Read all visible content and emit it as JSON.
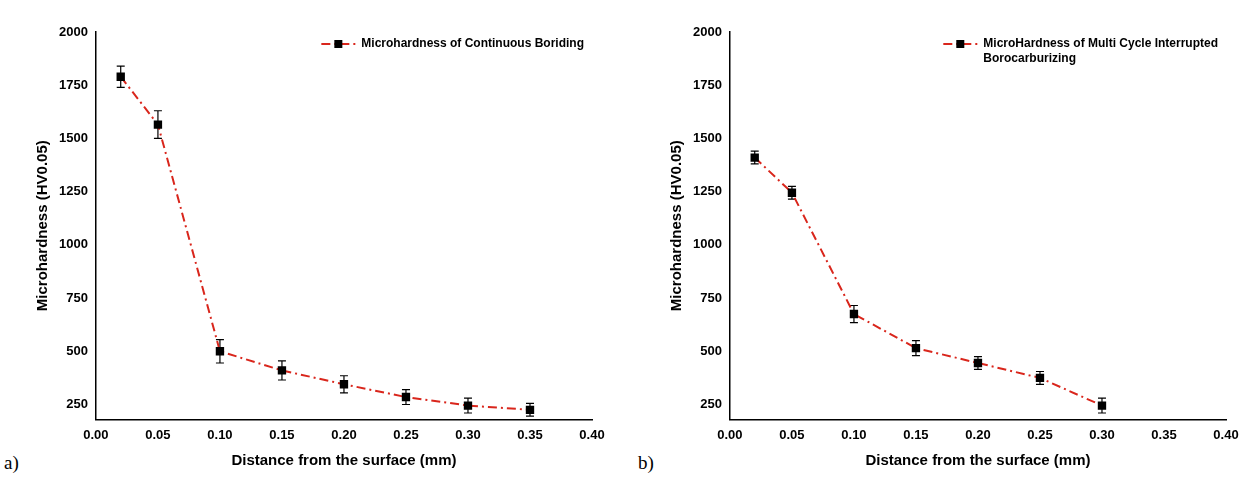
{
  "chart_data": [
    {
      "type": "line",
      "panel": "a)",
      "x_label": "Distance from the surface (mm)",
      "y_label": "Microhardness (HV0.05)",
      "legend": "upper right",
      "grid": false,
      "xlim": [
        0,
        0.4
      ],
      "xticks": [
        {
          "value": 0,
          "label": "0.00"
        },
        {
          "value": 0.05,
          "label": "0.05"
        },
        {
          "value": 0.1,
          "label": "0.10"
        },
        {
          "value": 0.15,
          "label": "0.15"
        },
        {
          "value": 0.2,
          "label": "0.20"
        },
        {
          "value": 0.25,
          "label": "0.25"
        },
        {
          "value": 0.3,
          "label": "0.30"
        },
        {
          "value": 0.35,
          "label": "0.35"
        },
        {
          "value": 0.4,
          "label": "0.40"
        }
      ],
      "ylim": [
        180,
        2000
      ],
      "yticks": [
        250,
        500,
        750,
        1000,
        1250,
        1500,
        1750,
        2000
      ],
      "x": [
        0.02,
        0.05,
        0.1,
        0.15,
        0.2,
        0.25,
        0.3,
        0.35
      ],
      "series": [
        {
          "name": "Microhardness of Continuous Boriding",
          "color": "#d9261c",
          "marker": "square",
          "line_style": "dashdot",
          "values": [
            1790,
            1565,
            500,
            410,
            345,
            285,
            245,
            225
          ],
          "errors": [
            50,
            65,
            55,
            45,
            40,
            35,
            35,
            30
          ]
        }
      ]
    },
    {
      "type": "line",
      "panel": "b)",
      "x_label": "Distance from the surface (mm)",
      "y_label": "Microhardness (HV0.05)",
      "legend": "upper right",
      "grid": false,
      "xlim": [
        0,
        0.4
      ],
      "xticks": [
        {
          "value": 0,
          "label": "0.00"
        },
        {
          "value": 0.05,
          "label": "0.05"
        },
        {
          "value": 0.1,
          "label": "0.10"
        },
        {
          "value": 0.15,
          "label": "0.15"
        },
        {
          "value": 0.2,
          "label": "0.20"
        },
        {
          "value": 0.25,
          "label": "0.25"
        },
        {
          "value": 0.3,
          "label": "0.30"
        },
        {
          "value": 0.35,
          "label": "0.35"
        },
        {
          "value": 0.4,
          "label": "0.40"
        }
      ],
      "ylim": [
        180,
        2000
      ],
      "yticks": [
        250,
        500,
        750,
        1000,
        1250,
        1500,
        1750,
        2000
      ],
      "x": [
        0.02,
        0.05,
        0.1,
        0.15,
        0.2,
        0.25,
        0.3
      ],
      "series": [
        {
          "name": "MicroHardness of Multi Cycle Interrupted Borocarburizing",
          "color": "#d9261c",
          "marker": "square",
          "line_style": "dashdot",
          "values": [
            1410,
            1245,
            675,
            515,
            445,
            375,
            245
          ],
          "errors": [
            30,
            30,
            40,
            35,
            30,
            30,
            35
          ]
        }
      ]
    }
  ]
}
